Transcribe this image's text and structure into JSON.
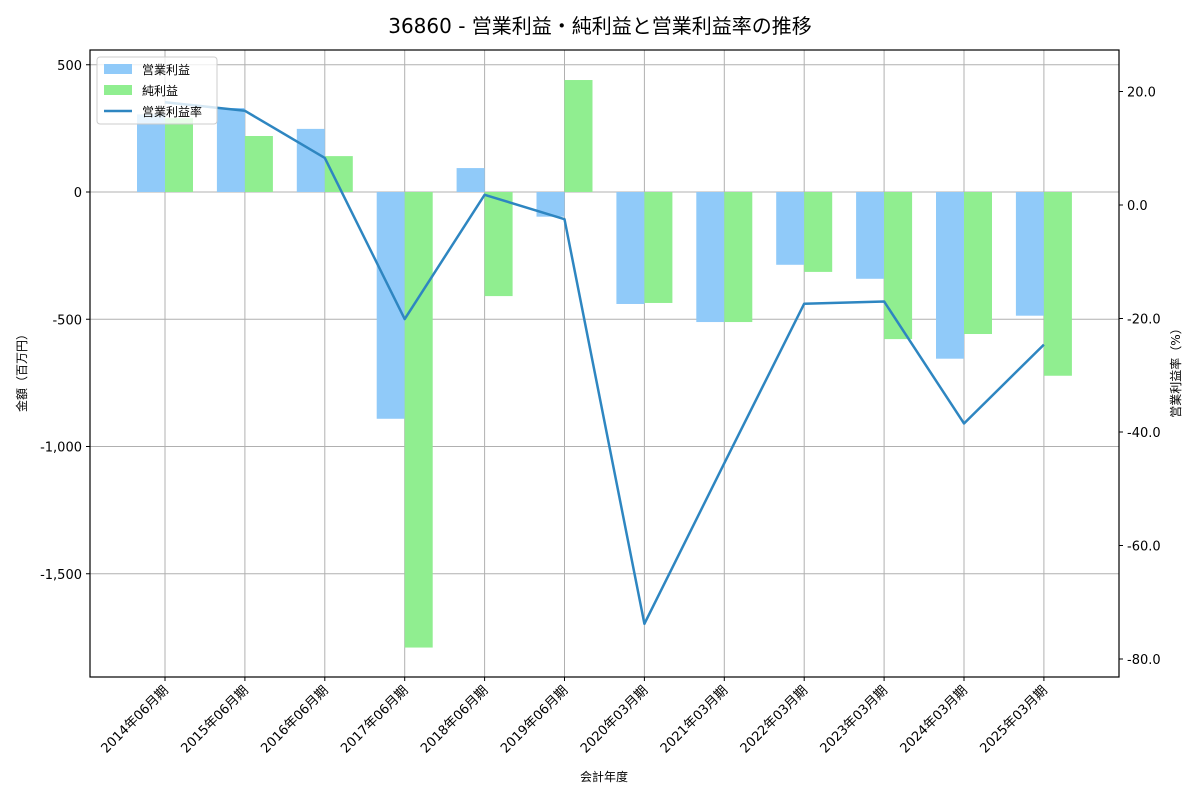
{
  "chart_data": {
    "type": "bar+line",
    "title": "36860 - 営業利益・純利益と営業利益率の推移",
    "xlabel": "会計年度",
    "ylabel": "金額（百万円）",
    "y2label": "営業利益率（%）",
    "categories": [
      "2014年06月期",
      "2015年06月期",
      "2016年06月期",
      "2017年06月期",
      "2018年06月期",
      "2019年06月期",
      "2020年03月期",
      "2021年03月期",
      "2022年03月期",
      "2023年03月期",
      "2024年03月期",
      "2025年03月期"
    ],
    "series": [
      {
        "name": "営業利益",
        "type": "bar",
        "axis": "left",
        "color": "#90CAF9",
        "values": [
          305,
          330,
          248,
          -891,
          94,
          -97,
          -440,
          -511,
          -286,
          -341,
          -655,
          -486
        ]
      },
      {
        "name": "純利益",
        "type": "bar",
        "axis": "left",
        "color": "#90EE90",
        "values": [
          290,
          220,
          141,
          -1790,
          -409,
          440,
          -436,
          -511,
          -314,
          -578,
          -558,
          -722
        ]
      },
      {
        "name": "営業利益率",
        "type": "line",
        "axis": "right",
        "color": "#2E86C1",
        "values": [
          18.1,
          16.6,
          8.3,
          -20.1,
          1.8,
          -2.5,
          -73.8,
          -45.5,
          -17.4,
          -17.0,
          -38.5,
          -24.6
        ]
      }
    ],
    "ylim": [
      -1910,
      550
    ],
    "y2lim": [
      -83,
      27
    ],
    "yticks": [
      500,
      0,
      -500,
      -1000,
      -1500
    ],
    "ytick_labels": [
      "500",
      "0",
      "-500",
      "-1,000",
      "-1,500"
    ],
    "y2ticks": [
      20,
      0,
      -20,
      -40,
      -60,
      -80
    ],
    "y2tick_labels": [
      "20.0",
      "0.0",
      "-20.0",
      "-40.0",
      "-60.0",
      "-80.0"
    ],
    "grid": true,
    "legend_position": "upper left"
  }
}
